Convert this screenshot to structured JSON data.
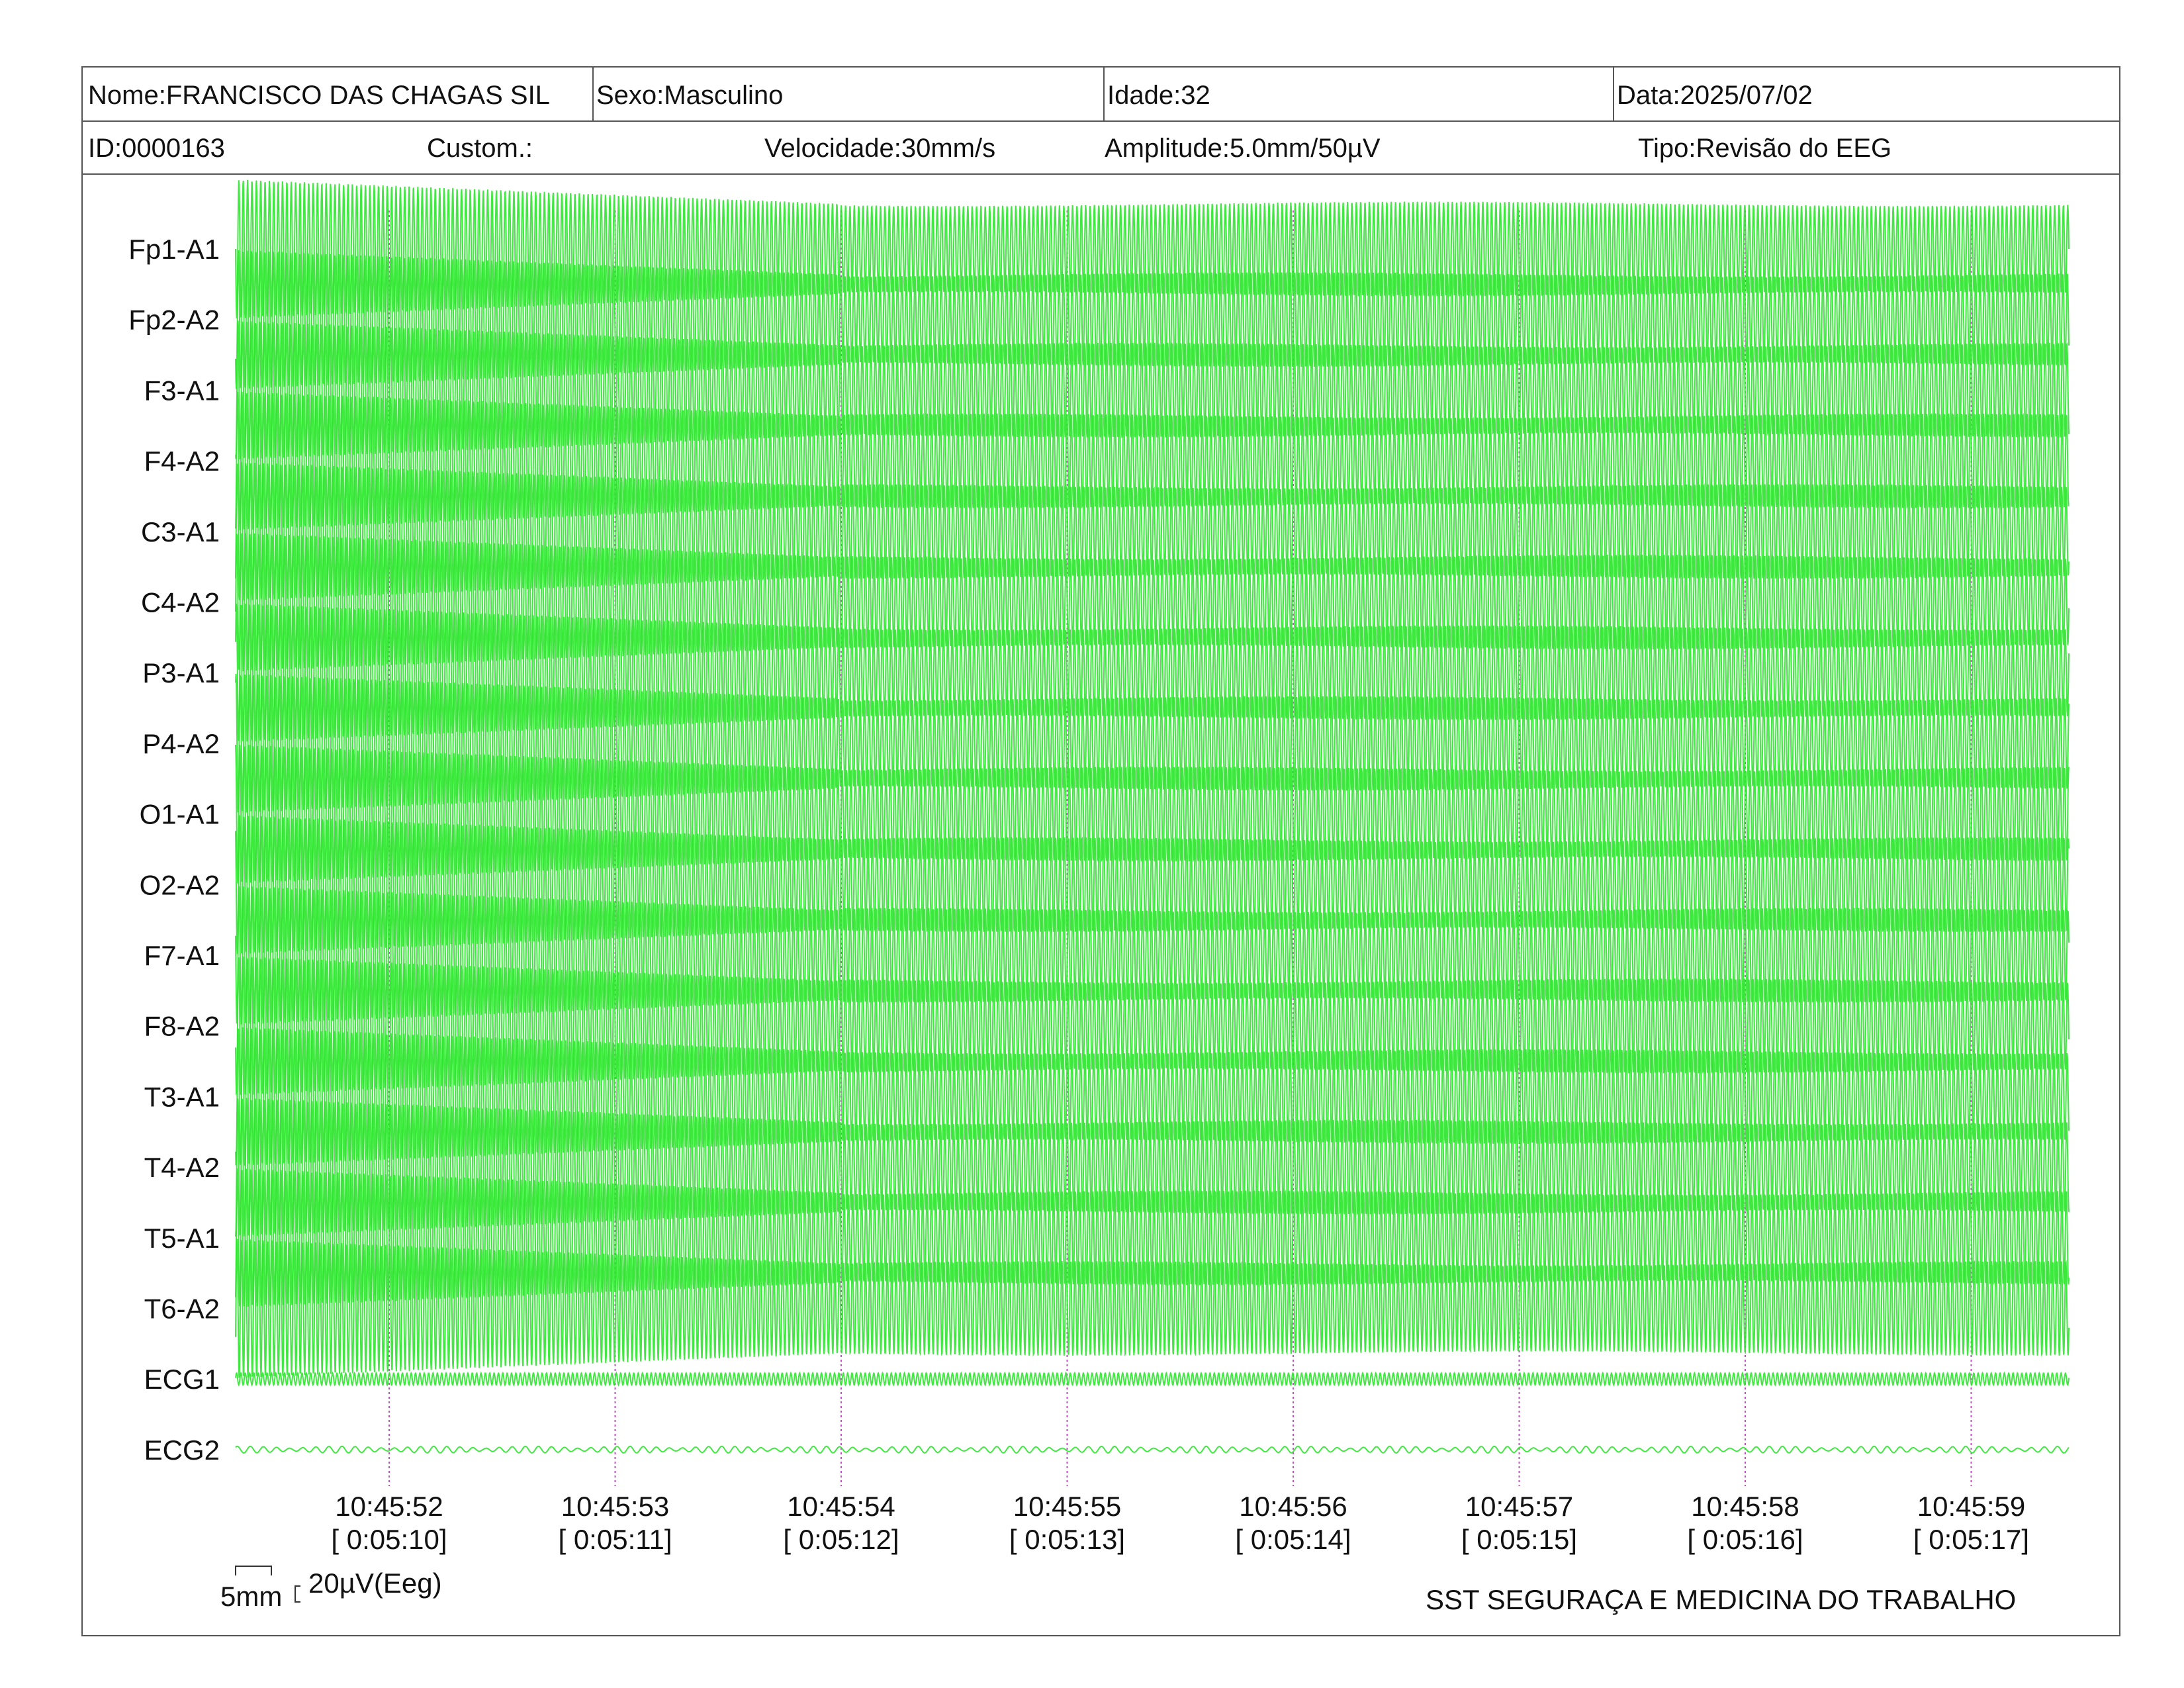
{
  "header": {
    "row1": {
      "name": "Nome:FRANCISCO DAS CHAGAS SIL",
      "sex": "Sexo:Masculino",
      "age": "Idade:32",
      "date": "Data:2025/07/02"
    },
    "row2": {
      "id": "ID:0000163",
      "custom": "Custom.:",
      "speed": "Velocidade:30mm/s",
      "amplitude": "Amplitude:5.0mm/50µV",
      "type": "Tipo:Revisão do EEG"
    }
  },
  "colors": {
    "trace": "#2ee62e",
    "marker": "#c34fc3",
    "border": "#555555"
  },
  "chart_data": {
    "type": "line",
    "title": "",
    "xlabel": "",
    "ylabel": "",
    "channels": [
      "Fp1-A1",
      "Fp2-A2",
      "F3-A1",
      "F4-A2",
      "C3-A1",
      "C4-A2",
      "P3-A1",
      "P4-A2",
      "O1-A1",
      "O2-A2",
      "F7-A1",
      "F8-A2",
      "T3-A1",
      "T4-A2",
      "T5-A1",
      "T6-A2",
      "ECG1",
      "ECG2"
    ],
    "time_ticks": [
      {
        "clock": "10:45:52",
        "elapsed": "[ 0:05:10]"
      },
      {
        "clock": "10:45:53",
        "elapsed": "[ 0:05:11]"
      },
      {
        "clock": "10:45:54",
        "elapsed": "[ 0:05:12]"
      },
      {
        "clock": "10:45:55",
        "elapsed": "[ 0:05:13]"
      },
      {
        "clock": "10:45:56",
        "elapsed": "[ 0:05:14]"
      },
      {
        "clock": "10:45:57",
        "elapsed": "[ 0:05:15]"
      },
      {
        "clock": "10:45:58",
        "elapsed": "[ 0:05:16]"
      },
      {
        "clock": "10:45:59",
        "elapsed": "[ 0:05:17]"
      }
    ],
    "x_range_seconds": [
      0,
      8.8
    ],
    "grid": false
  },
  "footer": {
    "scale_time": "5mm",
    "scale_amp": "20µV(Eeg)",
    "company": "SST SEGURAÇA E MEDICINA DO TRABALHO"
  }
}
